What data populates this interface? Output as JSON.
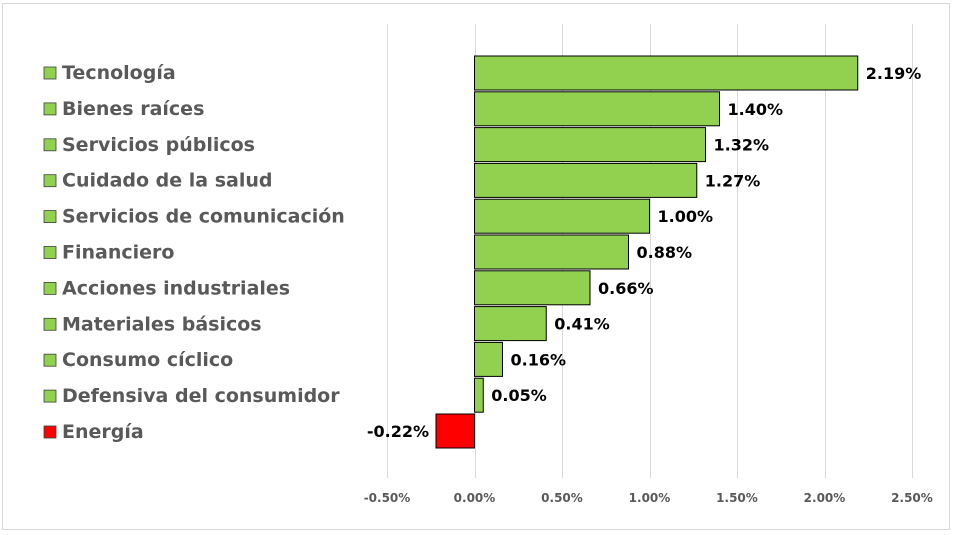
{
  "colors": {
    "positive": "#92d050",
    "negative": "#ff0000",
    "gridline": "#d9d9d9",
    "legend_text": "#595959",
    "label_text": "#000000"
  },
  "chart_data": {
    "type": "bar",
    "orientation": "horizontal",
    "title": "",
    "xlabel": "",
    "ylabel": "",
    "categories": [
      "Tecnología",
      "Bienes raíces",
      "Servicios públicos",
      "Cuidado de la salud",
      "Servicios de comunicación",
      "Financiero",
      "Acciones industriales",
      "Materiales básicos",
      "Consumo cíclico",
      "Defensiva del consumidor",
      "Energía"
    ],
    "values": [
      2.19,
      1.4,
      1.32,
      1.27,
      1.0,
      0.88,
      0.66,
      0.41,
      0.16,
      0.05,
      -0.22
    ],
    "data_labels": [
      "2.19%",
      "1.40%",
      "1.32%",
      "1.27%",
      "1.00%",
      "0.88%",
      "0.66%",
      "0.41%",
      "0.16%",
      "0.05%",
      "-0.22%"
    ],
    "xlim": [
      -0.5,
      2.5
    ],
    "x_ticks": [
      -0.5,
      0,
      0.5,
      1.0,
      1.5,
      2.0,
      2.5
    ],
    "x_tick_labels": [
      "-0.50%",
      "0.00%",
      "0.50%",
      "1.00%",
      "1.50%",
      "2.00%",
      "2.50%"
    ],
    "grid": true,
    "legend_position": "left"
  }
}
